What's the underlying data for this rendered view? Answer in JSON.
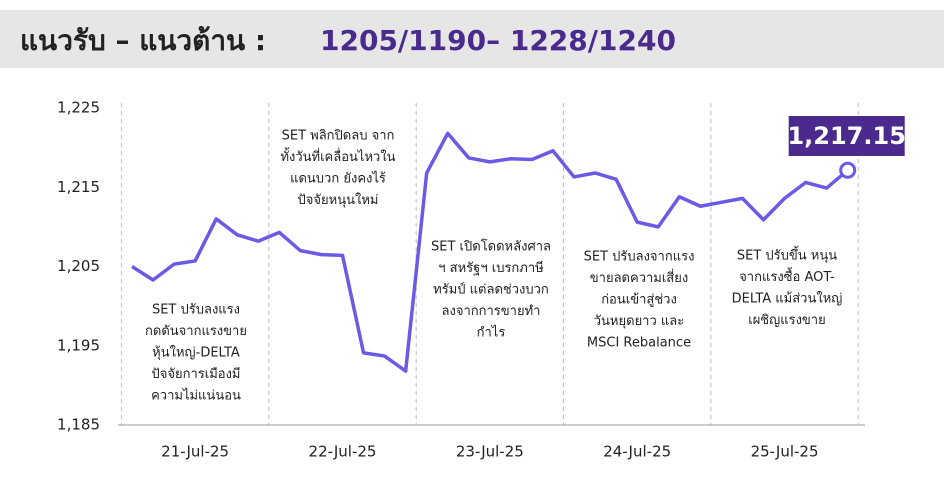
{
  "chart_data": {
    "type": "line",
    "title": "แนวรับ – แนวต้าน :",
    "subtitle": "1205/1190– 1228/1240",
    "categories": [
      null,
      null,
      null,
      "21-Jul-25",
      null,
      null,
      null,
      null,
      null,
      null,
      "22-Jul-25",
      null,
      null,
      null,
      null,
      null,
      null,
      "23-Jul-25",
      null,
      null,
      null,
      null,
      null,
      null,
      "24-Jul-25",
      null,
      null,
      null,
      null,
      null,
      null,
      "25-Jul-25",
      null,
      null,
      null
    ],
    "series": [
      {
        "name": "SET",
        "color": "#6a5ae6",
        "values": [
          1205,
          1203.3,
          1205.3,
          1205.7,
          1211,
          1209,
          1208.2,
          1209.3,
          1207,
          1206.5,
          1206.4,
          1194.1,
          1193.7,
          1191.8,
          1216.8,
          1221.8,
          1218.7,
          1218.2,
          1218.6,
          1218.5,
          1219.6,
          1216.3,
          1216.8,
          1216,
          1210.6,
          1210,
          1213.8,
          1212.6,
          1213.1,
          1213.6,
          1210.9,
          1213.6,
          1215.6,
          1214.9,
          1217.15
        ],
        "value_labels": [
          null,
          null,
          null,
          null,
          null,
          null,
          null,
          null,
          null,
          null,
          null,
          null,
          null,
          null,
          null,
          null,
          null,
          null,
          null,
          null,
          null,
          null,
          null,
          null,
          null,
          null,
          null,
          null,
          null,
          null,
          null,
          null,
          null,
          null,
          "1,217.15"
        ]
      }
    ],
    "ylim": [
      1185,
      1225
    ],
    "yticks": [
      {
        "value": 1185,
        "label": "1,185"
      },
      {
        "value": 1195,
        "label": "1,195"
      },
      {
        "value": 1205,
        "label": "1,205"
      },
      {
        "value": 1215,
        "label": "1,215"
      },
      {
        "value": 1225,
        "label": "1,225"
      }
    ],
    "annotations": [
      [
        "SET ปรับลงแรง",
        "กดดันจากแรงขาย",
        "หุ้นใหญ่-DELTA",
        "ปัจจัยการเมืองมี",
        "ความไม่แน่นอน"
      ],
      [
        "SET พลิกปิดลบ จาก",
        "ทั้งวันที่เคลื่อนไหวใน",
        "แดนบวก ยังคงไร้",
        "ปัจจัยหนุนใหม่"
      ],
      [
        "SET เปิดโดดหลังศาล",
        "ฯ สหรัฐฯ เบรกภาษี",
        "ทรัมป์ แต่ลดช่วงบวก",
        "ลงจากการขายทำ",
        "กำไร"
      ],
      [
        "SET ปรับลงจากแรง",
        "ขายลดความเสี่ยง",
        "ก่อนเข้าสู่ช่วง",
        "วันหยุดยาว และ",
        "MSCI Rebalance"
      ],
      [
        "SET ปรับขึ้น หนุน",
        "จากแรงซื้อ AOT-",
        "DELTA แม้ส่วนใหญ่",
        "เผชิญแรงขาย"
      ]
    ]
  }
}
